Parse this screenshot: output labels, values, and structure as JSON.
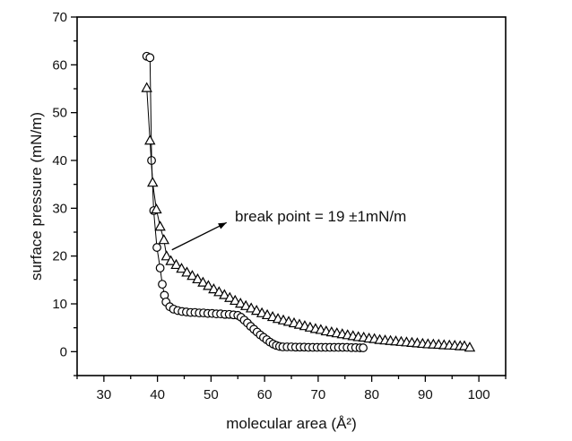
{
  "chart_data": {
    "type": "scatter",
    "xlabel": "molecular area (Å²)",
    "ylabel": "surface pressure (mN/m)",
    "xlim": [
      25,
      105
    ],
    "ylim": [
      -5,
      70
    ],
    "x_ticks": [
      30,
      40,
      50,
      60,
      70,
      80,
      90,
      100
    ],
    "y_ticks": [
      0,
      10,
      20,
      30,
      40,
      50,
      60,
      70
    ],
    "minor_tick_interval_x": 5,
    "minor_tick_interval_y": 5,
    "grid": false,
    "annotation": {
      "text": "break point = 19 ±1mN/m"
    },
    "series": [
      {
        "marker": "circle",
        "x": [
          38.0,
          38.6,
          38.9,
          39.3,
          39.9,
          40.5,
          40.9,
          41.3,
          41.6,
          42.3,
          43.0,
          43.8,
          44.6,
          45.4,
          46.2,
          47.0,
          47.8,
          48.6,
          49.4,
          50.2,
          51.0,
          51.8,
          52.6,
          53.4,
          54.2,
          55.0,
          55.6,
          56.2,
          56.8,
          57.4,
          58.0,
          58.6,
          59.2,
          59.8,
          60.4,
          61.0,
          61.6,
          62.2,
          62.8,
          63.4,
          64.2,
          65.0,
          65.8,
          66.6,
          67.4,
          68.2,
          69.0,
          69.8,
          70.6,
          71.4,
          72.2,
          73.0,
          73.8,
          74.6,
          75.4,
          76.2,
          77.0,
          77.8,
          78.4
        ],
        "y": [
          61.8,
          61.5,
          40.0,
          29.5,
          21.8,
          17.5,
          14.1,
          11.8,
          10.4,
          9.4,
          8.9,
          8.6,
          8.4,
          8.3,
          8.2,
          8.2,
          8.1,
          8.1,
          8.0,
          8.0,
          7.9,
          7.9,
          7.8,
          7.8,
          7.7,
          7.6,
          7.2,
          6.6,
          6.0,
          5.3,
          4.7,
          4.1,
          3.5,
          3.0,
          2.5,
          2.0,
          1.6,
          1.3,
          1.1,
          1.0,
          1.0,
          1.0,
          0.95,
          0.95,
          0.95,
          0.9,
          0.9,
          0.9,
          0.9,
          0.9,
          0.9,
          0.9,
          0.9,
          0.9,
          0.9,
          0.85,
          0.85,
          0.8,
          0.8
        ]
      },
      {
        "marker": "triangle",
        "x": [
          38.0,
          38.6,
          39.1,
          39.8,
          40.5,
          41.2,
          41.7,
          42.5,
          43.5,
          44.5,
          45.5,
          46.5,
          47.5,
          48.5,
          49.5,
          50.5,
          51.5,
          52.5,
          53.5,
          54.5,
          55.5,
          56.5,
          57.5,
          58.5,
          59.5,
          60.5,
          61.5,
          62.5,
          63.5,
          64.5,
          65.5,
          66.5,
          67.5,
          68.5,
          69.5,
          70.5,
          71.5,
          72.5,
          73.5,
          74.5,
          75.5,
          76.5,
          77.5,
          78.5,
          79.5,
          80.5,
          81.5,
          82.5,
          83.5,
          84.5,
          85.5,
          86.5,
          87.5,
          88.5,
          89.5,
          90.5,
          91.5,
          92.5,
          93.5,
          94.5,
          95.5,
          96.5,
          97.3,
          98.3
        ],
        "y": [
          55.2,
          44.2,
          35.4,
          29.8,
          26.2,
          23.4,
          20.0,
          19.0,
          18.2,
          17.4,
          16.6,
          15.9,
          15.2,
          14.5,
          13.8,
          13.1,
          12.5,
          11.9,
          11.3,
          10.7,
          10.1,
          9.6,
          9.1,
          8.6,
          8.1,
          7.7,
          7.3,
          6.9,
          6.6,
          6.3,
          6.0,
          5.7,
          5.4,
          5.1,
          4.8,
          4.6,
          4.3,
          4.1,
          3.9,
          3.7,
          3.5,
          3.3,
          3.1,
          3.0,
          2.8,
          2.7,
          2.5,
          2.4,
          2.3,
          2.2,
          2.1,
          2.0,
          1.9,
          1.8,
          1.7,
          1.6,
          1.55,
          1.5,
          1.4,
          1.35,
          1.3,
          1.2,
          1.2,
          0.9
        ]
      }
    ]
  }
}
